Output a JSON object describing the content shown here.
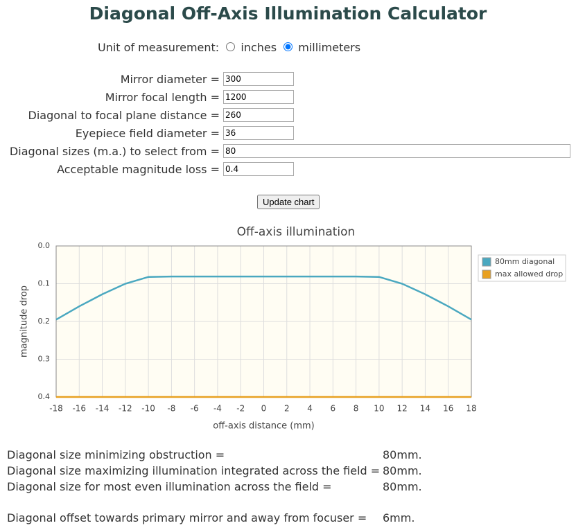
{
  "header": {
    "title": "Diagonal Off-Axis Illumination Calculator"
  },
  "units": {
    "label": "Unit of measurement:",
    "options": [
      "inches",
      "millimeters"
    ],
    "selected": 1
  },
  "form": {
    "fields": [
      {
        "label": "Mirror diameter =",
        "value": "300"
      },
      {
        "label": "Mirror focal length =",
        "value": "1200"
      },
      {
        "label": "Diagonal to focal plane distance =",
        "value": "260"
      },
      {
        "label": "Eyepiece field diameter =",
        "value": "36"
      },
      {
        "label": "Diagonal sizes (m.a.) to select from =",
        "value": "80"
      },
      {
        "label": "Acceptable magnitude loss =",
        "value": "0.4"
      }
    ],
    "button": "Update chart"
  },
  "chart_data": {
    "type": "line",
    "title": "Off-axis illumination",
    "xlabel": "off-axis distance (mm)",
    "ylabel": "magnitude drop",
    "x": [
      -18,
      -16,
      -14,
      -12,
      -10,
      -8,
      -6,
      -4,
      -2,
      0,
      2,
      4,
      6,
      8,
      10,
      12,
      14,
      16,
      18
    ],
    "series": [
      {
        "name": "80mm diagonal",
        "color": "#4aa8c0",
        "values": [
          0.195,
          0.16,
          0.128,
          0.1,
          0.082,
          0.081,
          0.081,
          0.081,
          0.081,
          0.081,
          0.081,
          0.081,
          0.081,
          0.081,
          0.082,
          0.1,
          0.128,
          0.16,
          0.195
        ]
      },
      {
        "name": "max allowed drop",
        "color": "#e8a020",
        "values": [
          0.4,
          0.4,
          0.4,
          0.4,
          0.4,
          0.4,
          0.4,
          0.4,
          0.4,
          0.4,
          0.4,
          0.4,
          0.4,
          0.4,
          0.4,
          0.4,
          0.4,
          0.4,
          0.4
        ]
      }
    ],
    "xlim": [
      -18,
      18
    ],
    "xticks": [
      -18,
      -16,
      -14,
      -12,
      -10,
      -8,
      -6,
      -4,
      -2,
      0,
      2,
      4,
      6,
      8,
      10,
      12,
      14,
      16,
      18
    ],
    "ylim": [
      0,
      0.4
    ],
    "yticks": [
      {
        "value": 0,
        "label": "0.0"
      },
      0.1,
      0.2,
      0.3,
      0.4
    ],
    "y_reversed": true,
    "grid": true,
    "legend": "right"
  },
  "results": [
    {
      "label": "Diagonal size minimizing obstruction =",
      "value": "80mm."
    },
    {
      "label": "Diagonal size maximizing illumination integrated across the field =",
      "value": "80mm."
    },
    {
      "label": "Diagonal size for most even illumination across the field =",
      "value": "80mm."
    },
    {
      "label": "Diagonal offset towards primary mirror and away from focuser =",
      "value": "6mm."
    }
  ]
}
